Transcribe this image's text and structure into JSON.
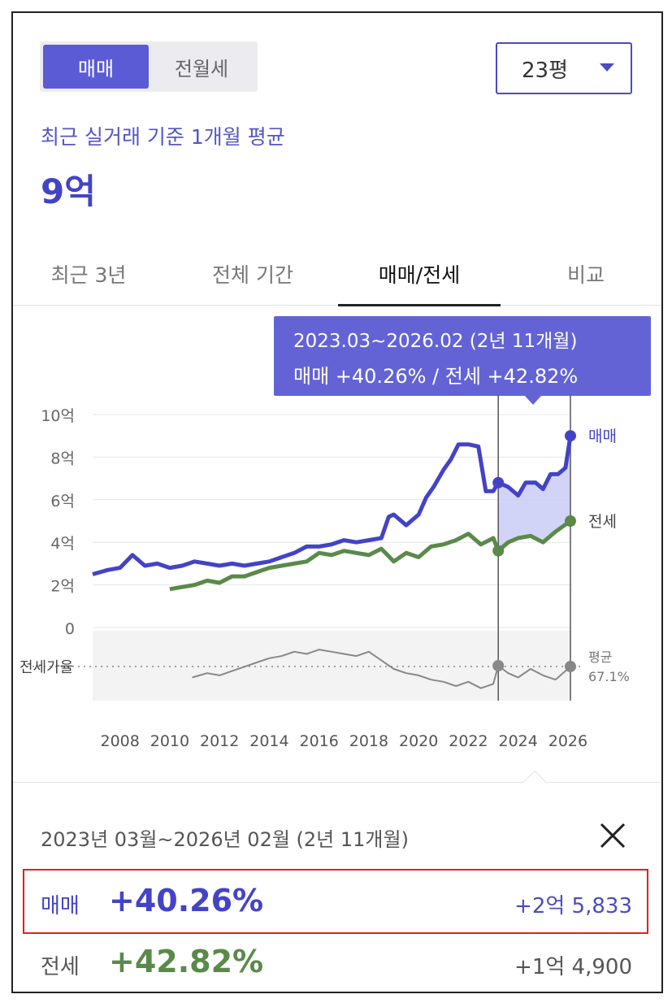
{
  "toggle": {
    "options": [
      "매매",
      "전월세"
    ],
    "selected": "매매"
  },
  "area_select": {
    "value": "23평"
  },
  "summary": {
    "label": "최근 실거래 기준 1개월 평균",
    "price": "9억"
  },
  "tabs": [
    {
      "label": "최근 3년",
      "active": false
    },
    {
      "label": "전체 기간",
      "active": false
    },
    {
      "label": "매매/전세",
      "active": true
    },
    {
      "label": "비교",
      "active": false
    }
  ],
  "tooltip": {
    "range": "2023.03~2026.02 (2년 11개월)",
    "values": "매매 +40.26%  /  전세 +42.82%"
  },
  "chart_data": {
    "type": "line",
    "x_tick_labels": [
      "2008",
      "2010",
      "2012",
      "2014",
      "2016",
      "2018",
      "2020",
      "2022",
      "2024",
      "2026"
    ],
    "y_tick_labels": [
      "10억",
      "8억",
      "6억",
      "4억",
      "2억",
      "0"
    ],
    "ylim": [
      0,
      10
    ],
    "series": [
      {
        "name": "매매",
        "color": "#4343c8",
        "x": [
          2006.9,
          2007.5,
          2008.0,
          2008.5,
          2009.0,
          2009.5,
          2010.0,
          2010.5,
          2011.0,
          2011.5,
          2012.0,
          2012.5,
          2013.0,
          2013.5,
          2014.0,
          2014.5,
          2015.0,
          2015.5,
          2016.0,
          2016.5,
          2017.0,
          2017.5,
          2018.0,
          2018.5,
          2018.8,
          2019.0,
          2019.5,
          2020.0,
          2020.3,
          2020.6,
          2021.0,
          2021.3,
          2021.6,
          2022.0,
          2022.4,
          2022.7,
          2023.0,
          2023.2,
          2023.6,
          2024.0,
          2024.3,
          2024.7,
          2025.0,
          2025.3,
          2025.6,
          2025.9,
          2026.1
        ],
        "values": [
          2.5,
          2.7,
          2.8,
          3.4,
          2.9,
          3.0,
          2.8,
          2.9,
          3.1,
          3.0,
          2.9,
          3.0,
          2.9,
          3.0,
          3.1,
          3.3,
          3.5,
          3.8,
          3.8,
          3.9,
          4.1,
          4.0,
          4.1,
          4.2,
          5.2,
          5.3,
          4.8,
          5.3,
          6.1,
          6.6,
          7.4,
          7.9,
          8.6,
          8.6,
          8.5,
          6.4,
          6.4,
          6.8,
          6.6,
          6.2,
          6.8,
          6.8,
          6.5,
          7.2,
          7.2,
          7.5,
          9.0
        ]
      },
      {
        "name": "전세",
        "color": "#5a8a4a",
        "x": [
          2010.0,
          2010.5,
          2011.0,
          2011.5,
          2012.0,
          2012.5,
          2013.0,
          2013.5,
          2014.0,
          2014.5,
          2015.0,
          2015.5,
          2016.0,
          2016.5,
          2017.0,
          2017.5,
          2018.0,
          2018.5,
          2019.0,
          2019.5,
          2020.0,
          2020.5,
          2021.0,
          2021.5,
          2022.0,
          2022.5,
          2023.0,
          2023.2,
          2023.6,
          2024.0,
          2024.5,
          2025.0,
          2025.5,
          2026.1
        ],
        "values": [
          1.8,
          1.9,
          2.0,
          2.2,
          2.1,
          2.4,
          2.4,
          2.6,
          2.8,
          2.9,
          3.0,
          3.1,
          3.5,
          3.4,
          3.6,
          3.5,
          3.4,
          3.7,
          3.1,
          3.5,
          3.3,
          3.8,
          3.9,
          4.1,
          4.4,
          3.9,
          4.2,
          3.6,
          4.0,
          4.2,
          4.3,
          4.0,
          4.5,
          5.0
        ]
      },
      {
        "name": "전세가율",
        "color": "#888888",
        "x": [
          2010.9,
          2011.5,
          2012.0,
          2012.5,
          2013.0,
          2013.5,
          2014.0,
          2014.5,
          2015.0,
          2015.5,
          2016.0,
          2016.5,
          2017.0,
          2017.5,
          2018.0,
          2018.5,
          2019.0,
          2019.5,
          2020.0,
          2020.5,
          2021.0,
          2021.5,
          2022.0,
          2022.5,
          2023.0,
          2023.2,
          2023.6,
          2024.0,
          2024.5,
          2025.0,
          2025.5,
          2026.1
        ],
        "values": [
          62,
          64,
          63,
          65,
          67,
          69,
          71,
          72,
          74,
          73,
          75,
          74,
          73,
          72,
          74,
          70,
          66,
          64,
          63,
          61,
          60,
          58,
          60,
          57,
          59,
          67.5,
          64,
          62,
          66,
          63,
          61,
          67.1
        ]
      }
    ],
    "highlight_range": {
      "start": 2023.2,
      "end": 2026.1
    },
    "ratio_panel": {
      "label": "전세가율",
      "avg_label": "평균",
      "avg_value": "67.1%"
    },
    "end_labels": [
      "매매",
      "전세"
    ]
  },
  "period_text": "2023년 03월~2026년 02월 (2년 11개월)",
  "results": [
    {
      "label": "매매",
      "pct": "+40.26%",
      "amount": "+2억 5,833"
    },
    {
      "label": "전세",
      "pct": "+42.82%",
      "amount": "+1억 4,900"
    }
  ],
  "colors": {
    "accent": "#5b5bd6",
    "sale": "#4343c8",
    "rent": "#5a8a4a",
    "highlight_border": "#e02020"
  }
}
